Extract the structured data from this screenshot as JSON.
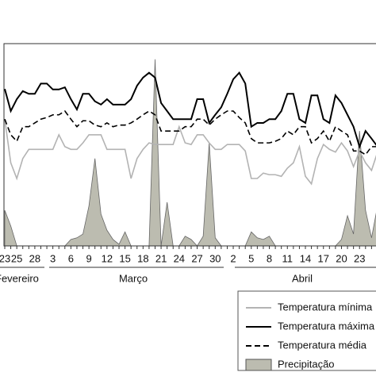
{
  "chart_data": {
    "type": "line",
    "categories": [
      "23",
      null,
      "25",
      null,
      null,
      "28",
      null,
      null,
      "3",
      null,
      null,
      "6",
      null,
      null,
      "9",
      null,
      null,
      "12",
      null,
      null,
      "15",
      null,
      null,
      "18",
      null,
      null,
      "21",
      null,
      null,
      "24",
      null,
      null,
      "27",
      null,
      null,
      "30",
      null,
      null,
      "2",
      null,
      null,
      "5",
      null,
      null,
      "8",
      null,
      null,
      "11",
      null,
      null,
      "14",
      null,
      null,
      "17",
      null,
      null,
      "20",
      null,
      null,
      "23",
      null,
      null,
      null
    ],
    "months": [
      "Fevereiro",
      "Março",
      "Abril"
    ],
    "ylim": [
      0,
      37.5
    ],
    "series": [
      {
        "name": "Temperatura mínima",
        "color": "#b3b3b3",
        "style": "solid",
        "values": [
          23.5,
          15.4,
          12.5,
          16.2,
          17.9,
          17.9,
          17.9,
          17.9,
          17.9,
          20.6,
          18.4,
          17.9,
          17.9,
          19.1,
          20.6,
          20.6,
          20.6,
          17.9,
          17.9,
          17.9,
          17.9,
          12.5,
          16.2,
          17.9,
          19.1,
          18.8,
          18.8,
          18.8,
          18.8,
          22.1,
          19.1,
          18.8,
          20.6,
          20.6,
          19.1,
          17.9,
          17.9,
          18.8,
          18.8,
          18.8,
          17.6,
          12.5,
          12.5,
          13.5,
          13.2,
          13.2,
          12.9,
          14.4,
          15.4,
          18.4,
          12.9,
          11.5,
          16.2,
          18.8,
          17.9,
          17.4,
          19.1,
          17.6,
          14.7,
          17.6,
          15.4,
          14.0,
          17.4
        ]
      },
      {
        "name": "Temperatura máxima",
        "color": "#000000",
        "style": "solid",
        "values": [
          29.1,
          25.0,
          27.2,
          28.7,
          28.2,
          28.2,
          30.1,
          30.1,
          29.0,
          29.0,
          29.4,
          27.2,
          25.3,
          28.2,
          28.2,
          26.8,
          26.2,
          27.2,
          26.2,
          26.2,
          26.2,
          27.2,
          29.7,
          31.2,
          32.1,
          31.2,
          26.5,
          25.0,
          23.5,
          23.5,
          23.5,
          23.5,
          27.2,
          27.2,
          22.8,
          24.3,
          25.7,
          28.2,
          30.9,
          32.1,
          30.1,
          22.1,
          22.8,
          22.8,
          23.5,
          23.5,
          25.0,
          28.2,
          28.2,
          23.5,
          22.8,
          27.9,
          27.9,
          23.5,
          22.8,
          27.9,
          26.5,
          24.3,
          22.1,
          18.4,
          21.3,
          19.9,
          18.4
        ]
      },
      {
        "name": "Temperatura média",
        "color": "#000000",
        "style": "dashed",
        "values": [
          23.5,
          20.6,
          19.4,
          22.1,
          22.1,
          22.8,
          23.5,
          23.8,
          24.3,
          24.3,
          25.0,
          23.5,
          22.1,
          23.2,
          23.2,
          22.4,
          22.1,
          22.8,
          22.1,
          22.4,
          22.4,
          22.8,
          23.5,
          24.3,
          25.0,
          24.3,
          21.3,
          21.3,
          21.3,
          21.3,
          22.1,
          22.1,
          23.5,
          23.5,
          22.4,
          23.5,
          24.3,
          25.0,
          25.0,
          23.8,
          22.8,
          19.9,
          19.1,
          19.1,
          19.1,
          19.4,
          19.9,
          21.3,
          20.6,
          22.1,
          22.1,
          19.1,
          19.9,
          21.3,
          19.4,
          22.1,
          21.3,
          20.6,
          17.6,
          17.6,
          16.9,
          18.4,
          18.4
        ]
      },
      {
        "name": "Precipitação",
        "color": "#bcbcb0",
        "style": "area",
        "values": [
          6.6,
          3.7,
          0,
          0,
          0,
          0,
          0,
          0,
          0,
          0,
          0,
          1.2,
          1.5,
          2.2,
          7.4,
          16.2,
          5.9,
          2.9,
          1.2,
          0.3,
          2.6,
          0,
          0,
          0,
          0,
          34.6,
          0,
          8.1,
          0,
          0,
          1.8,
          1.2,
          0,
          1.8,
          19.1,
          1.5,
          0,
          0,
          0,
          0,
          0,
          2.6,
          1.5,
          1.2,
          1.8,
          0,
          0,
          0,
          0,
          0,
          0,
          0,
          0,
          0,
          0,
          0,
          1.2,
          5.6,
          2.2,
          21.3,
          6.6,
          1.5,
          7.4
        ]
      }
    ]
  }
}
